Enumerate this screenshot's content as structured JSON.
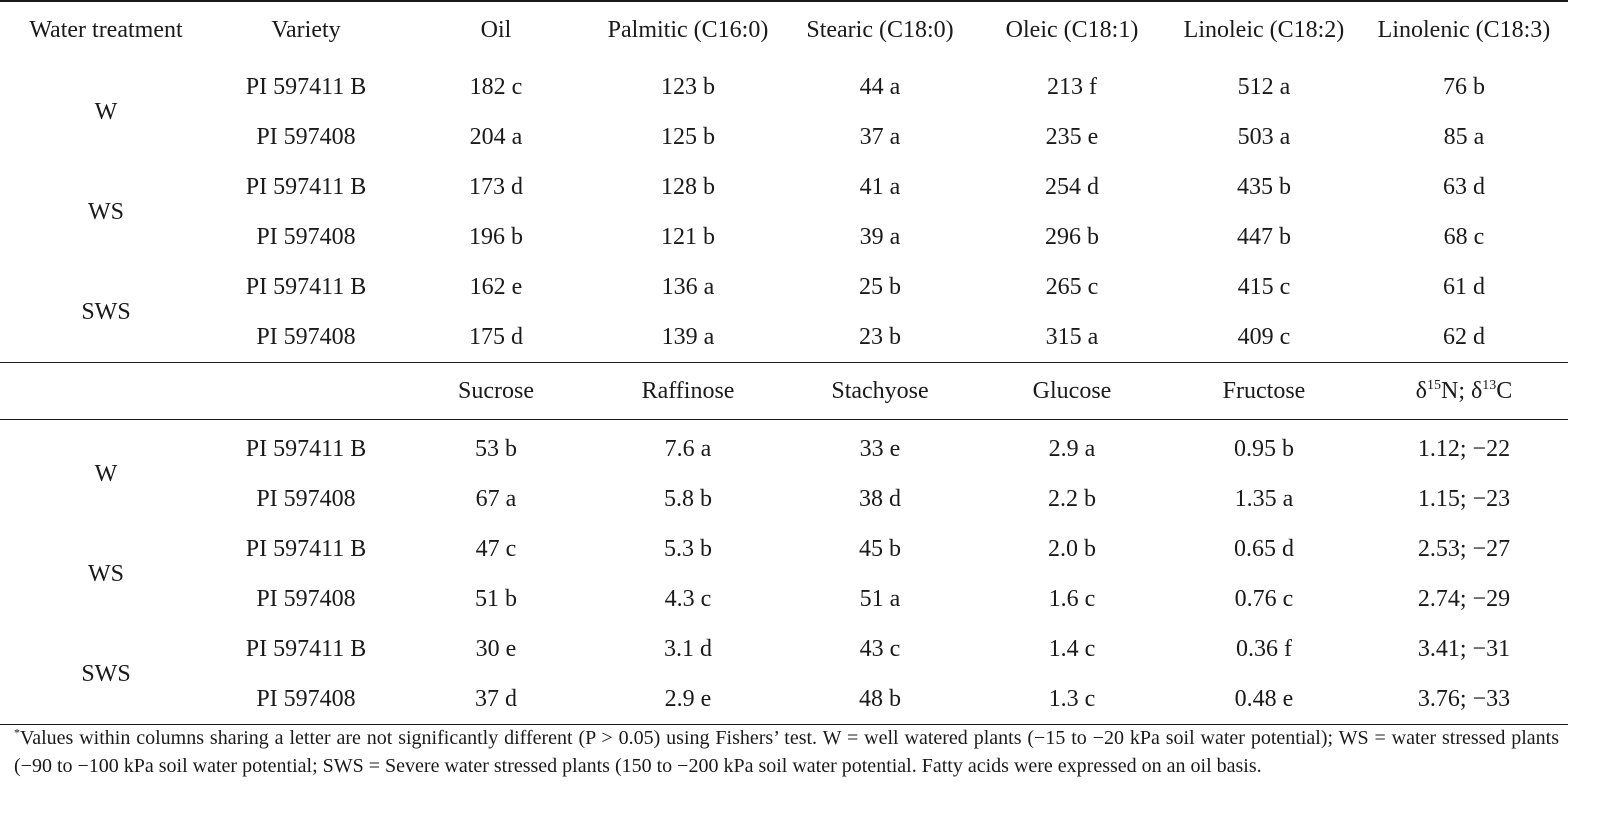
{
  "top_header": [
    "Water treatment",
    "Variety",
    "Oil",
    "Palmitic (C16:0)",
    "Stearic (C18:0)",
    "Oleic (C18:1)",
    "Linoleic (C18:2)",
    "Linolenic (C18:3)"
  ],
  "top_rows": [
    {
      "treatment": "W",
      "variety": "PI 597411 B",
      "values": [
        "182 c",
        "123 b",
        "44 a",
        "213 f",
        "512 a",
        "76 b"
      ]
    },
    {
      "treatment": "",
      "variety": "PI 597408",
      "values": [
        "204 a",
        "125 b",
        "37 a",
        "235 e",
        "503 a",
        "85 a"
      ]
    },
    {
      "treatment": "WS",
      "variety": "PI 597411 B",
      "values": [
        "173 d",
        "128 b",
        "41 a",
        "254 d",
        "435 b",
        "63 d"
      ]
    },
    {
      "treatment": "",
      "variety": "PI 597408",
      "values": [
        "196 b",
        "121 b",
        "39 a",
        "296 b",
        "447 b",
        "68 c"
      ]
    },
    {
      "treatment": "SWS",
      "variety": "PI 597411 B",
      "values": [
        "162 e",
        "136 a",
        "25 b",
        "265 c",
        "415 c",
        "61 d"
      ]
    },
    {
      "treatment": "",
      "variety": "PI 597408",
      "values": [
        "175 d",
        "139 a",
        "23 b",
        "315 a",
        "409 c",
        "62 d"
      ]
    }
  ],
  "bottom_header": [
    "Sucrose",
    "Raffinose",
    "Stachyose",
    "Glucose",
    "Fructose"
  ],
  "isotope_header": {
    "delta": "δ",
    "n_mass": "15",
    "n_sym": "N; ",
    "c_mass": "13",
    "c_sym": "C"
  },
  "bottom_rows": [
    {
      "treatment": "W",
      "variety": "PI 597411 B",
      "values": [
        "53 b",
        "7.6 a",
        "33 e",
        "2.9 a",
        "0.95 b",
        "1.12; −22"
      ]
    },
    {
      "treatment": "",
      "variety": "PI 597408",
      "values": [
        "67 a",
        "5.8 b",
        "38 d",
        "2.2 b",
        "1.35 a",
        "1.15; −23"
      ]
    },
    {
      "treatment": "WS",
      "variety": "PI 597411 B",
      "values": [
        "47 c",
        "5.3 b",
        "45 b",
        "2.0 b",
        "0.65 d",
        "2.53; −27"
      ]
    },
    {
      "treatment": "",
      "variety": "PI 597408",
      "values": [
        "51 b",
        "4.3 c",
        "51 a",
        "1.6 c",
        "0.76 c",
        "2.74; −29"
      ]
    },
    {
      "treatment": "SWS",
      "variety": "PI 597411 B",
      "values": [
        "30 e",
        "3.1 d",
        "43 c",
        "1.4 c",
        "0.36 f",
        "3.41; −31"
      ]
    },
    {
      "treatment": "",
      "variety": "PI 597408",
      "values": [
        "37 d",
        "2.9 e",
        "48 b",
        "1.3 c",
        "0.48 e",
        "3.76; −33"
      ]
    }
  ],
  "footnote": {
    "mark": "*",
    "text": "Values within columns sharing a letter are not significantly different (P > 0.05) using Fishers’ test. W = well watered plants (−15 to −20 kPa soil water potential); WS = water stressed plants (−90 to −100 kPa soil water potential; SWS = Severe water stressed plants (150 to −200 kPa soil water potential. Fatty acids were expressed on an oil basis."
  }
}
